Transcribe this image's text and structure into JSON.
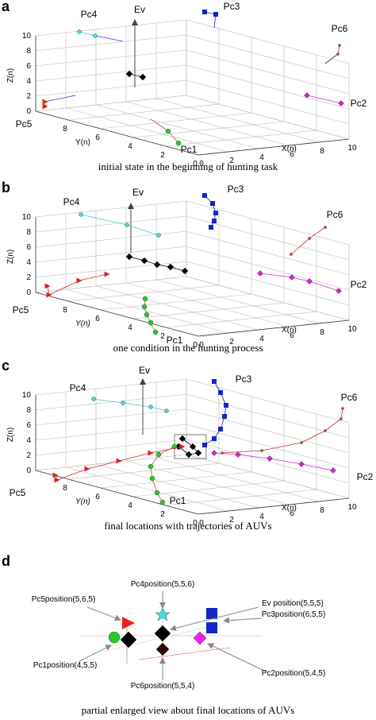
{
  "panels": [
    {
      "label": "a",
      "caption": "initial state in the beginning of hunting task",
      "axes": {
        "x_label": "X(n)",
        "y_label": "Y(n)",
        "z_label": "Z(n)",
        "x_ticks": [
          "0",
          "2",
          "4",
          "6",
          "8",
          "10"
        ],
        "y_ticks": [
          "0",
          "2",
          "4",
          "6",
          "8"
        ],
        "z_ticks": [
          "0",
          "2",
          "4",
          "6",
          "8",
          "10"
        ]
      },
      "point_labels": [
        "Pc4",
        "Ev",
        "Pc3",
        "Pc6",
        "Pc2",
        "Pc1",
        "Pc5"
      ]
    },
    {
      "label": "b",
      "caption": "one condition in the hunting process",
      "axes": {
        "x_label": "X(n)",
        "y_label": "Y(n)",
        "z_label": "Z(n)",
        "x_ticks": [
          "0",
          "2",
          "4",
          "6",
          "8",
          "10"
        ],
        "y_ticks": [
          "0",
          "2",
          "4",
          "6",
          "8"
        ],
        "z_ticks": [
          "0",
          "2",
          "4",
          "6",
          "8",
          "10"
        ]
      },
      "point_labels": [
        "Pc4",
        "Ev",
        "Pc3",
        "Pc6",
        "Pc2",
        "Pc1",
        "Pc5"
      ]
    },
    {
      "label": "c",
      "caption": "final locations with trajectories of AUVs",
      "axes": {
        "x_label": "X(n)",
        "y_label": "Y(n)",
        "z_label": "Z(n)",
        "x_ticks": [
          "0",
          "2",
          "4",
          "6",
          "8",
          "10"
        ],
        "y_ticks": [
          "0",
          "2",
          "4",
          "6",
          "8"
        ],
        "z_ticks": [
          "0",
          "2",
          "4",
          "6",
          "8",
          "10"
        ]
      },
      "point_labels": [
        "Pc4",
        "Ev",
        "Pc3",
        "Pc6",
        "Pc2",
        "Pc1",
        "Pc5"
      ]
    }
  ],
  "panel_d": {
    "label": "d",
    "caption": "partial enlarged view about final locations of AUVs",
    "annotations": [
      "Pc4position(5,5,6)",
      "Ev position(5,5,5)",
      "Pc5position(5,6,5)",
      "Pc3position(6,5,5)",
      "Pc1position(4,5,5)",
      "Pc2position(5,4,5)",
      "Pc6position(5,5,4)"
    ]
  }
}
